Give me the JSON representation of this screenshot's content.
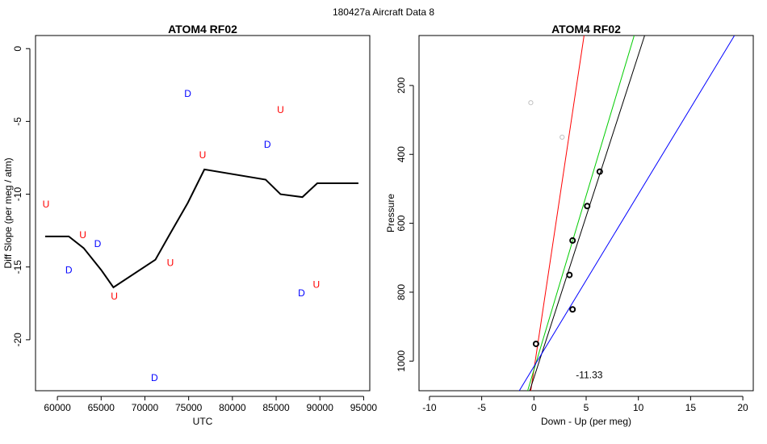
{
  "figure": {
    "suptitle": "180427a   Aircraft Data 8"
  },
  "chart_data": [
    {
      "type": "line",
      "title": "ATOM4 RF02",
      "xlabel": "UTC",
      "ylabel": "Diff Slope (per meg / atm)",
      "xlim": [
        57500,
        95700
      ],
      "ylim": [
        -23.5,
        0.9
      ],
      "xticks": [
        60000,
        65000,
        70000,
        75000,
        80000,
        85000,
        90000,
        95000
      ],
      "yticks": [
        0,
        -5,
        -10,
        -15,
        -20
      ],
      "series": [
        {
          "name": "smoothed diff slope",
          "color": "#000000",
          "x": [
            58600,
            61300,
            63000,
            65000,
            66400,
            71200,
            72800,
            74900,
            76800,
            83800,
            85500,
            88000,
            89700,
            94400
          ],
          "y": [
            -12.9,
            -12.9,
            -13.7,
            -15.2,
            -16.4,
            -14.5,
            -12.8,
            -10.6,
            -8.3,
            -9.0,
            -10.0,
            -10.2,
            -9.25,
            -9.25
          ]
        }
      ],
      "markers": [
        {
          "label": "U",
          "x": 58700,
          "y": -10.7,
          "color": "#ff0000"
        },
        {
          "label": "U",
          "x": 62900,
          "y": -12.8,
          "color": "#ff0000"
        },
        {
          "label": "U",
          "x": 66500,
          "y": -17.0,
          "color": "#ff0000"
        },
        {
          "label": "U",
          "x": 72900,
          "y": -14.7,
          "color": "#ff0000"
        },
        {
          "label": "U",
          "x": 76600,
          "y": -7.3,
          "color": "#ff0000"
        },
        {
          "label": "U",
          "x": 85500,
          "y": -4.2,
          "color": "#ff0000"
        },
        {
          "label": "U",
          "x": 89600,
          "y": -16.2,
          "color": "#ff0000"
        },
        {
          "label": "D",
          "x": 61300,
          "y": -15.2,
          "color": "#0000ff"
        },
        {
          "label": "D",
          "x": 64600,
          "y": -13.4,
          "color": "#0000ff"
        },
        {
          "label": "D",
          "x": 71100,
          "y": -22.6,
          "color": "#0000ff"
        },
        {
          "label": "D",
          "x": 74900,
          "y": -3.1,
          "color": "#0000ff"
        },
        {
          "label": "D",
          "x": 84000,
          "y": -6.6,
          "color": "#0000ff"
        },
        {
          "label": "D",
          "x": 87900,
          "y": -16.8,
          "color": "#0000ff"
        }
      ]
    },
    {
      "type": "scatter",
      "title": "ATOM4 RF02",
      "xlabel": "Down - Up (per meg)",
      "ylabel": "Pressure",
      "xlim": [
        -11,
        21
      ],
      "ylim": [
        1086,
        55
      ],
      "xticks": [
        -10,
        -5,
        0,
        5,
        10,
        15,
        20
      ],
      "yticks": [
        200,
        400,
        600,
        800,
        1000
      ],
      "points": [
        {
          "x": -0.3,
          "y": 250,
          "color": "#c0c0c0",
          "kind": "excluded"
        },
        {
          "x": 2.7,
          "y": 350,
          "color": "#c0c0c0",
          "kind": "excluded"
        },
        {
          "x": 6.3,
          "y": 450,
          "color": "#000000",
          "kind": "used"
        },
        {
          "x": 5.1,
          "y": 550,
          "color": "#000000",
          "kind": "used"
        },
        {
          "x": 3.7,
          "y": 650,
          "color": "#000000",
          "kind": "used"
        },
        {
          "x": 3.4,
          "y": 750,
          "color": "#000000",
          "kind": "used"
        },
        {
          "x": 3.7,
          "y": 850,
          "color": "#000000",
          "kind": "used"
        },
        {
          "x": 0.2,
          "y": 950,
          "color": "#000000",
          "kind": "used"
        }
      ],
      "lines": [
        {
          "name": "red fit",
          "color": "#ff0000",
          "p0": [
            -0.3,
            1086
          ],
          "p1": [
            4.8,
            55
          ]
        },
        {
          "name": "green fit",
          "color": "#00cc00",
          "p0": [
            -0.6,
            1086
          ],
          "p1": [
            9.6,
            55
          ]
        },
        {
          "name": "black fit",
          "color": "#000000",
          "p0": [
            -0.4,
            1086
          ],
          "p1": [
            10.6,
            55
          ]
        },
        {
          "name": "blue fit",
          "color": "#0000ff",
          "p0": [
            -1.4,
            1086
          ],
          "p1": [
            19.2,
            55
          ]
        }
      ],
      "annotation": "-11.33",
      "annotation_pos": {
        "x": 5.3,
        "y": 1040
      }
    }
  ]
}
